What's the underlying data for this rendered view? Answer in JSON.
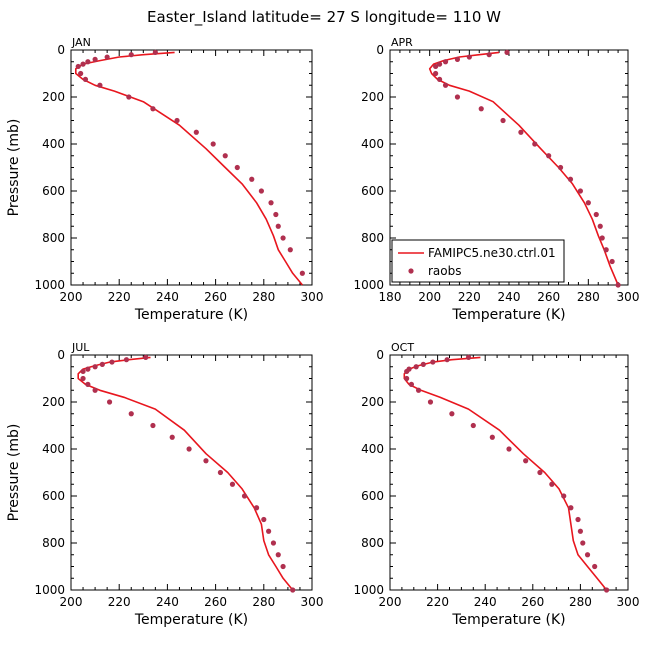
{
  "page_title": "Easter_Island  latitude= 27 S longitude= 110 W",
  "legend": {
    "model_label": "FAMIPC5.ne30.ctrl.01",
    "obs_label": "raobs",
    "model_color": "#e8161e",
    "obs_color": "#b0304f"
  },
  "chart_data": [
    {
      "type": "line",
      "panel": "JAN",
      "xlabel": "Temperature (K)",
      "ylabel": "Pressure (mb)",
      "xlim": [
        200,
        300
      ],
      "ylim": [
        1000,
        0
      ],
      "xticks": [
        200,
        220,
        240,
        260,
        280,
        300
      ],
      "yticks": [
        0,
        200,
        400,
        600,
        800,
        1000
      ],
      "legend": false,
      "series": [
        {
          "name": "FAMIPC5.ne30.ctrl.01",
          "kind": "line",
          "x": [
            243,
            230,
            220,
            212,
            205,
            202,
            202,
            205,
            210,
            218,
            230,
            245,
            256,
            264,
            271,
            277,
            281,
            284,
            286,
            289,
            292,
            296
          ],
          "y": [
            10,
            20,
            30,
            45,
            60,
            80,
            100,
            125,
            150,
            175,
            220,
            320,
            420,
            500,
            570,
            650,
            720,
            790,
            850,
            900,
            950,
            1000
          ]
        },
        {
          "name": "raobs",
          "kind": "scatter",
          "x": [
            235,
            225,
            215,
            210,
            207,
            205,
            203,
            204,
            206,
            212,
            224,
            234,
            244,
            252,
            259,
            264,
            269,
            275,
            279,
            283,
            285,
            286,
            288,
            291,
            296
          ],
          "y": [
            10,
            20,
            30,
            40,
            50,
            60,
            70,
            100,
            125,
            150,
            200,
            250,
            300,
            350,
            400,
            450,
            500,
            550,
            600,
            650,
            700,
            750,
            800,
            850,
            950
          ]
        }
      ]
    },
    {
      "type": "line",
      "panel": "APR",
      "xlabel": "Temperature (K)",
      "ylabel": "",
      "xlim": [
        180,
        300
      ],
      "ylim": [
        1000,
        0
      ],
      "xticks": [
        180,
        200,
        220,
        240,
        260,
        280,
        300
      ],
      "yticks": [
        0,
        200,
        400,
        600,
        800,
        1000
      ],
      "legend": true,
      "legend_position": "bottom-left",
      "series": [
        {
          "name": "FAMIPC5.ne30.ctrl.01",
          "kind": "line",
          "x": [
            235,
            225,
            215,
            207,
            202,
            200,
            201,
            204,
            210,
            220,
            232,
            245,
            256,
            265,
            272,
            278,
            282,
            285,
            288,
            291,
            295
          ],
          "y": [
            10,
            20,
            30,
            45,
            60,
            80,
            100,
            125,
            150,
            175,
            220,
            320,
            420,
            500,
            570,
            650,
            720,
            790,
            850,
            920,
            1000
          ]
        },
        {
          "name": "raobs",
          "kind": "scatter",
          "x": [
            239,
            230,
            220,
            214,
            208,
            205,
            203,
            203,
            205,
            208,
            214,
            226,
            237,
            246,
            253,
            260,
            266,
            271,
            276,
            280,
            284,
            286,
            287,
            289,
            292,
            295
          ],
          "y": [
            10,
            20,
            30,
            40,
            50,
            60,
            70,
            100,
            125,
            150,
            200,
            250,
            300,
            350,
            400,
            450,
            500,
            550,
            600,
            650,
            700,
            750,
            800,
            850,
            900,
            1000
          ]
        }
      ]
    },
    {
      "type": "line",
      "panel": "JUL",
      "xlabel": "Temperature (K)",
      "ylabel": "Pressure (mb)",
      "xlim": [
        200,
        300
      ],
      "ylim": [
        1000,
        0
      ],
      "xticks": [
        200,
        220,
        240,
        260,
        280,
        300
      ],
      "yticks": [
        0,
        200,
        400,
        600,
        800,
        1000
      ],
      "legend": false,
      "series": [
        {
          "name": "FAMIPC5.ne30.ctrl.01",
          "kind": "line",
          "x": [
            233,
            224,
            216,
            210,
            205,
            203,
            203,
            206,
            212,
            222,
            235,
            247,
            256,
            265,
            271,
            276,
            279,
            280,
            282,
            285,
            288,
            292
          ],
          "y": [
            10,
            20,
            30,
            45,
            60,
            80,
            100,
            125,
            150,
            180,
            230,
            320,
            420,
            500,
            570,
            650,
            720,
            790,
            850,
            900,
            950,
            1000
          ]
        },
        {
          "name": "raobs",
          "kind": "scatter",
          "x": [
            231,
            223,
            217,
            213,
            210,
            207,
            205,
            205,
            207,
            210,
            216,
            225,
            234,
            242,
            249,
            256,
            262,
            267,
            272,
            277,
            280,
            282,
            284,
            286,
            288,
            292
          ],
          "y": [
            10,
            20,
            30,
            40,
            50,
            60,
            70,
            100,
            125,
            150,
            200,
            250,
            300,
            350,
            400,
            450,
            500,
            550,
            600,
            650,
            700,
            750,
            800,
            850,
            900,
            1000
          ]
        }
      ]
    },
    {
      "type": "line",
      "panel": "OCT",
      "xlabel": "Temperature (K)",
      "ylabel": "",
      "xlim": [
        200,
        300
      ],
      "ylim": [
        1000,
        0
      ],
      "xticks": [
        200,
        220,
        240,
        260,
        280,
        300
      ],
      "yticks": [
        0,
        200,
        400,
        600,
        800,
        1000
      ],
      "legend": false,
      "series": [
        {
          "name": "FAMIPC5.ne30.ctrl.01",
          "kind": "line",
          "x": [
            238,
            226,
            218,
            212,
            208,
            206,
            206,
            208,
            213,
            221,
            233,
            246,
            256,
            265,
            271,
            275,
            276,
            277,
            279,
            283,
            287,
            291
          ],
          "y": [
            10,
            20,
            30,
            45,
            60,
            80,
            100,
            125,
            150,
            180,
            230,
            320,
            420,
            500,
            570,
            650,
            720,
            790,
            850,
            900,
            950,
            1000
          ]
        },
        {
          "name": "raobs",
          "kind": "scatter",
          "x": [
            233,
            224,
            218,
            214,
            211,
            208,
            207,
            207,
            209,
            212,
            217,
            226,
            235,
            243,
            250,
            257,
            263,
            268,
            273,
            276,
            279,
            280,
            281,
            283,
            286,
            291
          ],
          "y": [
            10,
            20,
            30,
            40,
            50,
            60,
            70,
            100,
            125,
            150,
            200,
            250,
            300,
            350,
            400,
            450,
            500,
            550,
            600,
            650,
            700,
            750,
            800,
            850,
            900,
            1000
          ]
        }
      ]
    }
  ]
}
